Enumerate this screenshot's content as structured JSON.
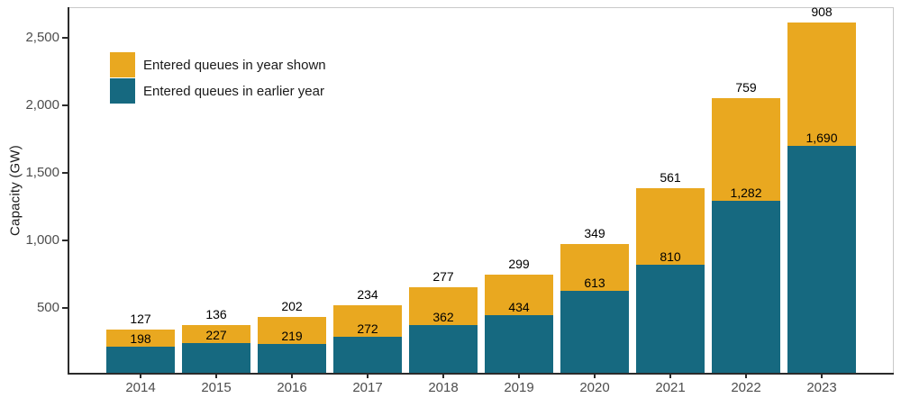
{
  "chart_data": {
    "type": "bar",
    "stacked": true,
    "title": "",
    "xlabel": "",
    "ylabel": "Capacity (GW)",
    "categories": [
      "2014",
      "2015",
      "2016",
      "2017",
      "2018",
      "2019",
      "2020",
      "2021",
      "2022",
      "2023"
    ],
    "series": [
      {
        "name": "Entered queues in earlier year",
        "color": "#166980",
        "values": [
          198,
          227,
          219,
          272,
          362,
          434,
          613,
          810,
          1282,
          1690
        ]
      },
      {
        "name": "Entered queues in year shown",
        "color": "#E9A820",
        "values": [
          127,
          136,
          202,
          234,
          277,
          299,
          349,
          561,
          759,
          908
        ]
      }
    ],
    "totals": [
      325,
      363,
      421,
      506,
      639,
      733,
      962,
      1371,
      2041,
      2598
    ],
    "y_ticks": [
      500,
      1000,
      1500,
      2000,
      2500
    ],
    "ylim": [
      0,
      2720
    ],
    "grid": false,
    "legend_position": "inside-top-left"
  },
  "colors": {
    "axis_line": "#2b2b2b",
    "panel_border": "#c9c9c9",
    "tick_label": "#4d4d4d",
    "bar_label": "#000000",
    "background": "#ffffff"
  }
}
